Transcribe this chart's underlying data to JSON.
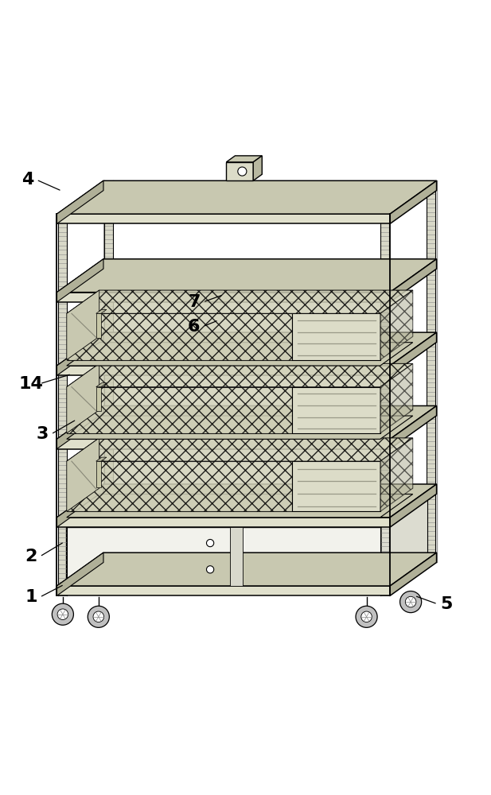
{
  "bg_color": "#ffffff",
  "line_color": "#000000",
  "figure_width": 6.17,
  "figure_height": 10.0,
  "label_fontsize": 16,
  "shelf_fc": "#e0e0cc",
  "shelf_top_fc": "#c8c8b0",
  "shelf_side_fc": "#b0b098",
  "rod_fc": "#d0d0c0",
  "basket_mesh_fc": "#d0d0b8",
  "basket_side_fc": "#b8b8a0",
  "cab_fc": "#ececec",
  "wheel_fc": "#c0c0c0",
  "labels": [
    [
      1,
      0.062,
      0.092,
      0.13,
      0.118
    ],
    [
      2,
      0.062,
      0.175,
      0.13,
      0.205
    ],
    [
      3,
      0.085,
      0.425,
      0.155,
      0.455
    ],
    [
      4,
      0.055,
      0.945,
      0.125,
      0.922
    ],
    [
      5,
      0.91,
      0.078,
      0.845,
      0.095
    ],
    [
      6,
      0.395,
      0.645,
      0.445,
      0.658
    ],
    [
      7,
      0.395,
      0.695,
      0.455,
      0.71
    ],
    [
      14,
      0.062,
      0.528,
      0.145,
      0.548
    ]
  ]
}
